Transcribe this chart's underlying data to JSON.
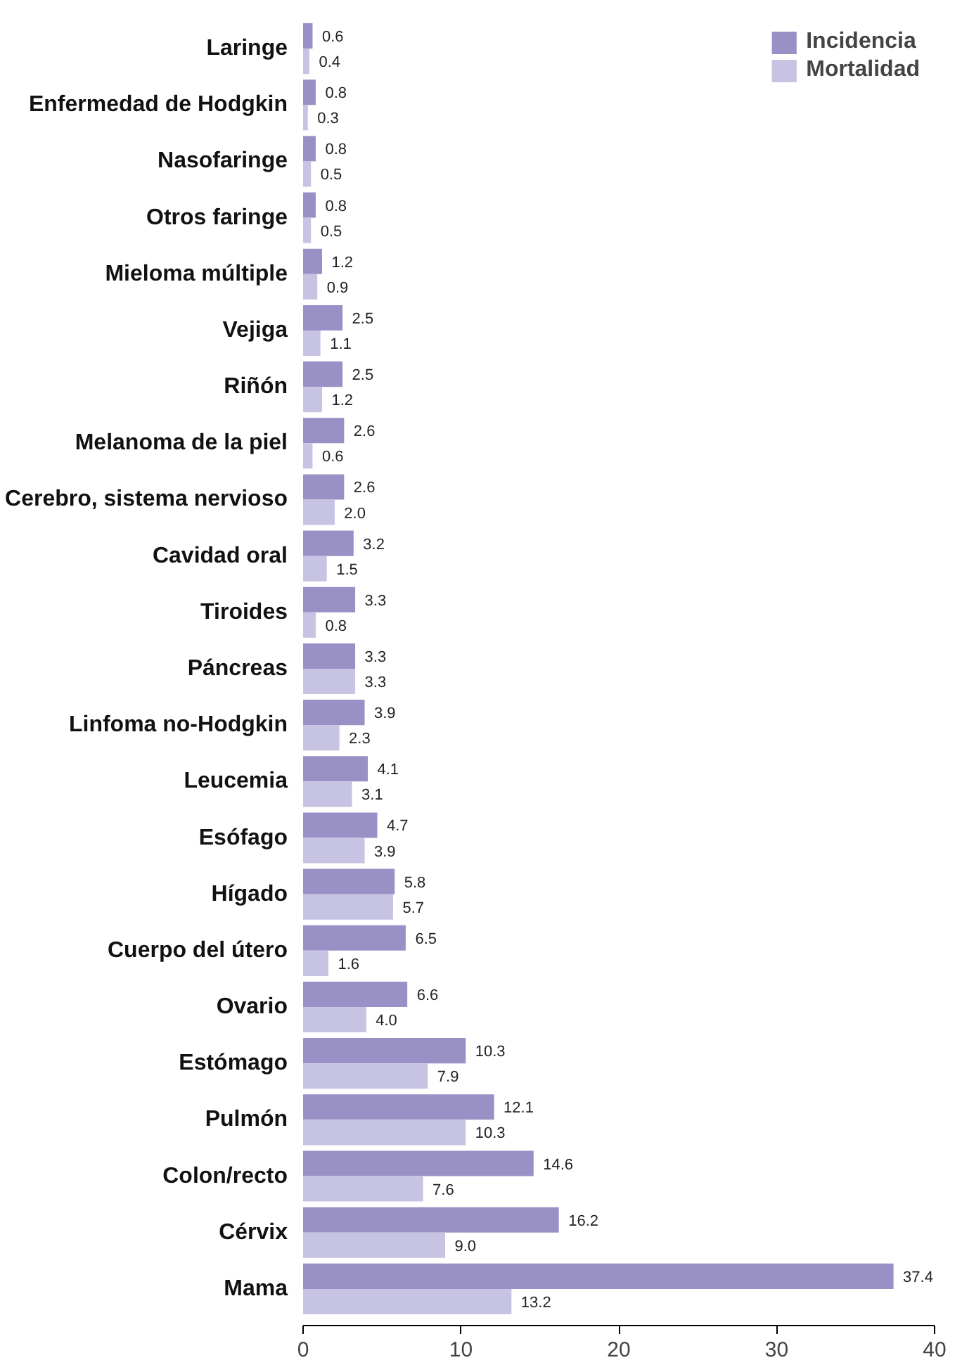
{
  "chart_data": {
    "type": "bar",
    "orientation": "horizontal",
    "categories": [
      "Laringe",
      "Enfermedad de Hodgkin",
      "Nasofaringe",
      "Otros faringe",
      "Mieloma múltiple",
      "Vejiga",
      "Riñón",
      "Melanoma de la piel",
      "Cerebro, sistema nervioso",
      "Cavidad oral",
      "Tiroides",
      "Páncreas",
      "Linfoma no-Hodgkin",
      "Leucemia",
      "Esófago",
      "Hígado",
      "Cuerpo del útero",
      "Ovario",
      "Estómago",
      "Pulmón",
      "Colon/recto",
      "Cérvix",
      "Mama"
    ],
    "series": [
      {
        "name": "Incidencia",
        "color": "#9991c6",
        "values": [
          0.6,
          0.8,
          0.8,
          0.8,
          1.2,
          2.5,
          2.5,
          2.6,
          2.6,
          3.2,
          3.3,
          3.3,
          3.9,
          4.1,
          4.7,
          5.8,
          6.5,
          6.6,
          10.3,
          12.1,
          14.6,
          16.2,
          37.4
        ],
        "value_labels": [
          "0.6",
          "0.8",
          "0.8",
          "0.8",
          "1.2",
          "2.5",
          "2.5",
          "2.6",
          "2.6",
          "3.2",
          "3.3",
          "3.3",
          "3.9",
          "4.1",
          "4.7",
          "5.8",
          "6.5",
          "6.6",
          "10.3",
          "12.1",
          "14.6",
          "16.2",
          "37.4"
        ]
      },
      {
        "name": "Mortalidad",
        "color": "#c6c3e3",
        "values": [
          0.4,
          0.3,
          0.5,
          0.5,
          0.9,
          1.1,
          1.2,
          0.6,
          2.0,
          1.5,
          0.8,
          3.3,
          2.3,
          3.1,
          3.9,
          5.7,
          1.6,
          4.0,
          7.9,
          10.3,
          7.6,
          9.0,
          13.2
        ],
        "value_labels": [
          "0.4",
          "0.3",
          "0.5",
          "0.5",
          "0.9",
          "1.1",
          "1.2",
          "0.6",
          "2.0",
          "1.5",
          "0.8",
          "3.3",
          "2.3",
          "3.1",
          "3.9",
          "5.7",
          "1.6",
          "4.0",
          "7.9",
          "10.3",
          "7.6",
          "9.0",
          "13.2"
        ]
      }
    ],
    "xlim": [
      0,
      40
    ],
    "xticks": [
      0,
      10,
      20,
      30,
      40
    ],
    "grid": false,
    "legend": "top right"
  }
}
